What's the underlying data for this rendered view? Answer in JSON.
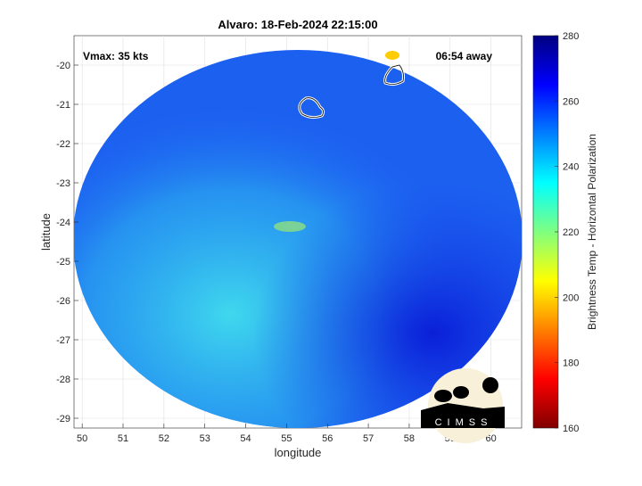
{
  "chart_data": {
    "type": "heatmap",
    "title": "Alvaro: 18-Feb-2024 22:15:00",
    "xlabel": "longitude",
    "ylabel": "latitude",
    "xlim": [
      49.8,
      60.75
    ],
    "ylim": [
      -29.25,
      -19.25
    ],
    "xticks": [
      "50",
      "51",
      "52",
      "53",
      "54",
      "55",
      "56",
      "57",
      "58",
      "59",
      "60"
    ],
    "yticks": [
      "-20",
      "-21",
      "-22",
      "-23",
      "-24",
      "-25",
      "-26",
      "-27",
      "-28",
      "-29"
    ],
    "grid": true,
    "annotations": {
      "vmax": "Vmax: 35 kts",
      "time_offset": "06:54 away"
    },
    "colorbar": {
      "label": "Brightness Temp - Horizontal Polarization",
      "range": [
        160,
        280
      ],
      "ticks": [
        "160",
        "180",
        "200",
        "220",
        "240",
        "260",
        "280"
      ],
      "colormap": "jet",
      "placement": "right"
    },
    "field_summary": "Mostly 245-270 K over swath; warmer (~265-275) in east, cooler (~235-245) in southwest"
  },
  "logo": "CIMSS"
}
